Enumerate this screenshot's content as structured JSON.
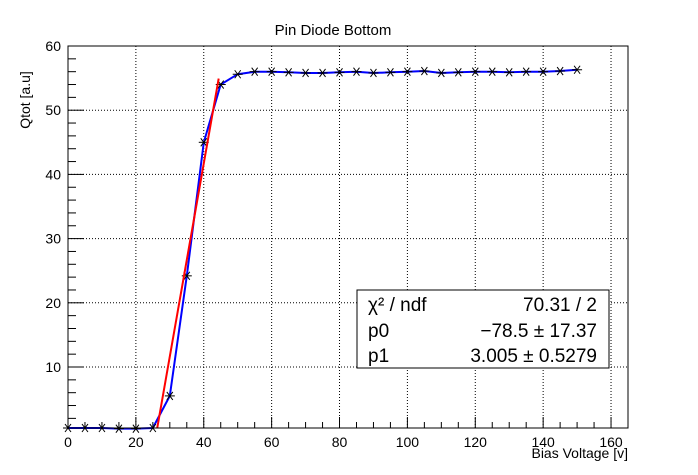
{
  "chart_data": {
    "type": "scatter",
    "title": "Pin Diode Bottom",
    "xlabel": "Bias Voltage [v]",
    "ylabel": "Qtot [a.u]",
    "xlim": [
      0,
      165
    ],
    "ylim": [
      0.5,
      60
    ],
    "x_ticks": [
      0,
      20,
      40,
      60,
      80,
      100,
      120,
      140,
      160
    ],
    "y_ticks": [
      10,
      20,
      30,
      40,
      50,
      60
    ],
    "grid": true,
    "series": [
      {
        "color": "#0000ff",
        "marker": "asterisk",
        "x": [
          0,
          5,
          10,
          15,
          20,
          25,
          30,
          35,
          40,
          45,
          50,
          55,
          60,
          65,
          70,
          75,
          80,
          85,
          90,
          95,
          100,
          105,
          110,
          115,
          120,
          125,
          130,
          135,
          140,
          145,
          150
        ],
        "y": [
          0.5,
          0.5,
          0.5,
          0.4,
          0.4,
          0.5,
          5.5,
          24.2,
          45.0,
          54.0,
          55.6,
          56.0,
          56.0,
          55.9,
          55.8,
          55.8,
          55.9,
          56.0,
          55.8,
          55.9,
          56.0,
          56.1,
          55.8,
          55.9,
          56.0,
          56.0,
          55.9,
          56.0,
          56.0,
          56.1,
          56.3
        ]
      }
    ],
    "fit": {
      "color": "#ff0000",
      "x_range": [
        26.3,
        44.4
      ],
      "p0": -78.5,
      "p1": 3.005
    },
    "stats_box": {
      "row1_label": "χ² / ndf",
      "row1_value": "70.31 / 2",
      "row2_label": "p0",
      "row2_value": "−78.5 ± 17.37",
      "row3_label": "p1",
      "row3_value": "3.005 ± 0.5279"
    }
  }
}
